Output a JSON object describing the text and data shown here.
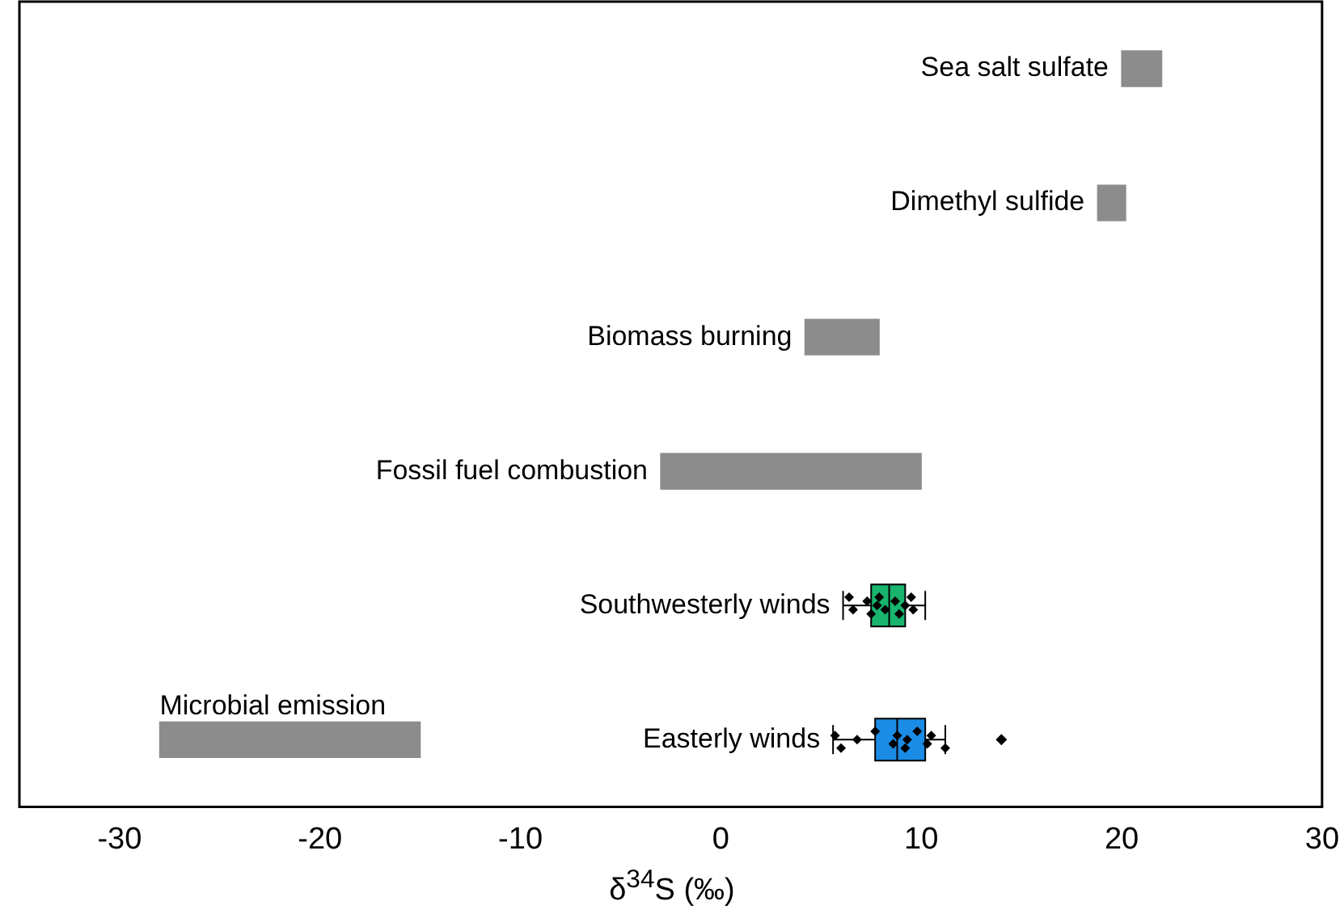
{
  "chart_data": {
    "type": "bar",
    "orientation": "horizontal",
    "xlabel": "δ$^{34}$S (‰)",
    "categories": [
      "Sea salt sulfate",
      "Dimethyl sulfide",
      "Biomass burning",
      "Fossil fuel combustion",
      "Southwesterly winds",
      "Easterly winds"
    ],
    "series": [
      {
        "color": "#8c8c8c",
        "base": [
          20,
          18.8,
          4.2,
          -3,
          null,
          -28
        ],
        "values": [
          2,
          1.4,
          3.7,
          13,
          null,
          13
        ]
      },
      {
        "type": "box",
        "colors": [
          null,
          null,
          null,
          null,
          "#19b46e",
          "#1a8ce6"
        ],
        "boxes": [
          null,
          null,
          null,
          null,
          {
            "low": 6.1,
            "q1": 7.5,
            "median": 8.4,
            "q3": 9.2,
            "high": 10.2
          },
          {
            "low": 5.6,
            "q1": 7.7,
            "median": 8.8,
            "q3": 10.2,
            "high": 11.2,
            "outliers": [
              14.0
            ]
          }
        ]
      },
      {
        "type": "scatter",
        "color": "#000000",
        "marker": "diamond",
        "x": [
          "Southwesterly winds",
          "Southwesterly winds",
          "Southwesterly winds",
          "Southwesterly winds",
          "Southwesterly winds",
          "Southwesterly winds",
          "Southwesterly winds",
          "Southwesterly winds",
          "Southwesterly winds",
          "Southwesterly winds",
          "Southwesterly winds",
          "Southwesterly winds",
          "Easterly winds",
          "Easterly winds",
          "Easterly winds",
          "Easterly winds",
          "Easterly winds",
          "Easterly winds",
          "Easterly winds",
          "Easterly winds",
          "Easterly winds",
          "Easterly winds",
          "Easterly winds",
          "Easterly winds"
        ],
        "values": [
          6.4,
          6.6,
          7.3,
          7.5,
          7.8,
          7.9,
          8.2,
          8.7,
          8.9,
          9.2,
          9.5,
          9.6,
          5.7,
          6.0,
          6.8,
          7.7,
          8.6,
          8.8,
          9.2,
          9.3,
          9.8,
          10.3,
          10.5,
          11.2
        ]
      }
    ],
    "xlim": [
      -35,
      30
    ],
    "xticks": [
      -30,
      -20,
      -10,
      0,
      10,
      20,
      30
    ],
    "annotations": [
      {
        "text": "Microbial emission",
        "x": -28,
        "y": "Easterly winds"
      }
    ],
    "grid": false,
    "legend": false
  }
}
